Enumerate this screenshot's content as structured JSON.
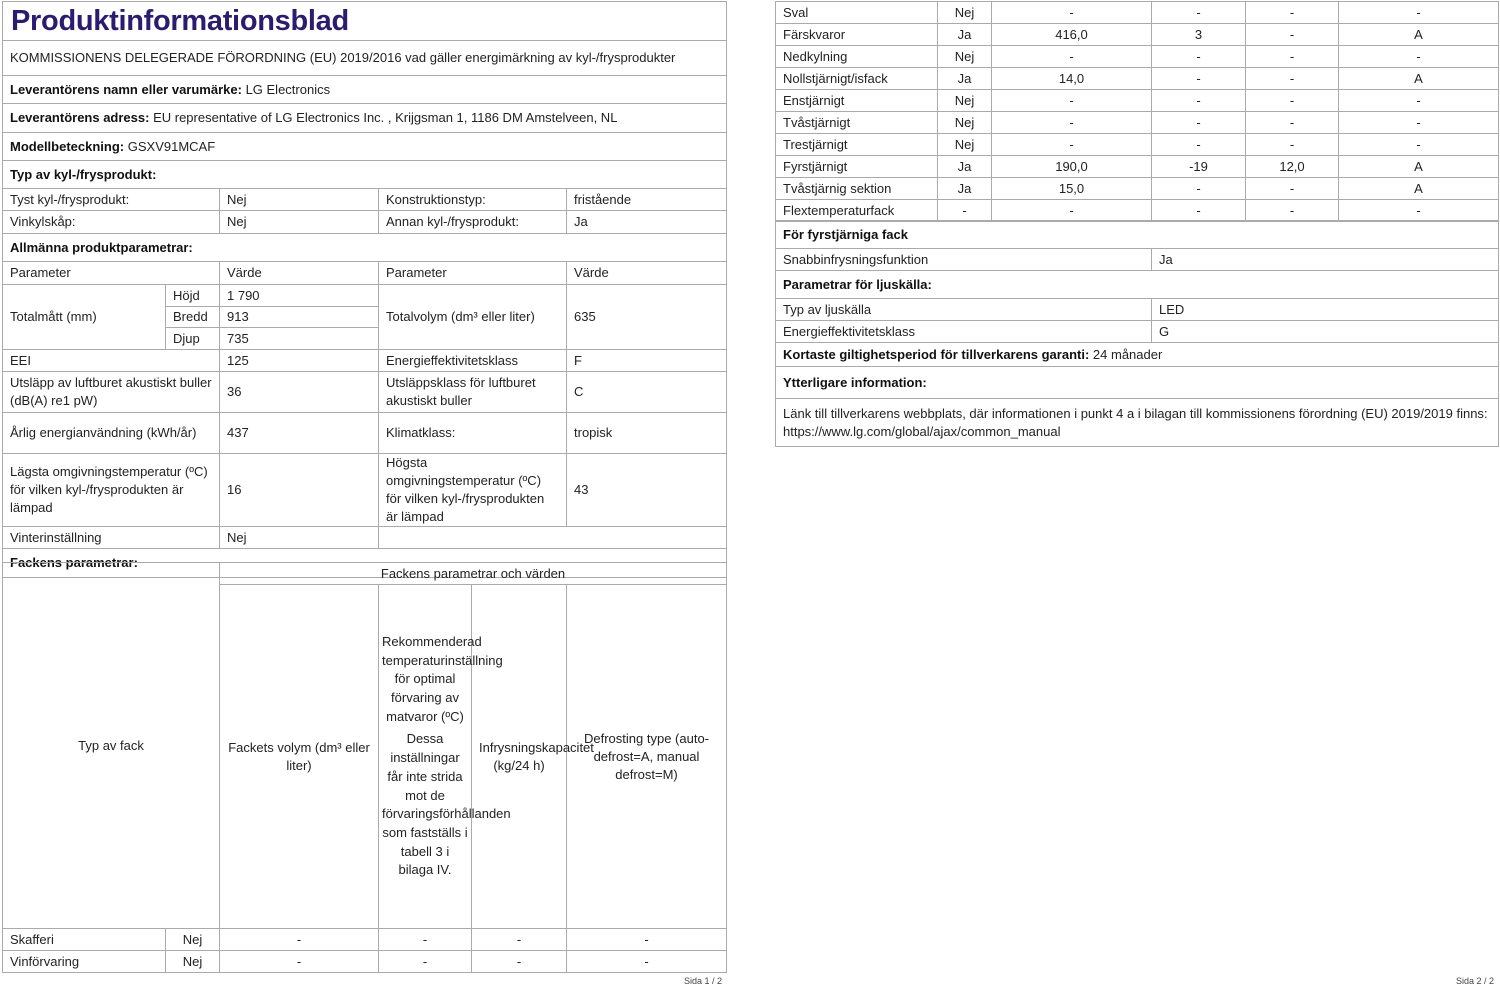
{
  "page1": {
    "title": "Produktinformationsblad",
    "regulation": "KOMMISSIONENS DELEGERADE FÖRORDNING (EU) 2019/2016 vad gäller energimärkning av kyl-/frysprodukter",
    "supplier_label": "Leverantörens namn eller varumärke:",
    "supplier": "LG Electronics",
    "address_label": "Leverantörens adress:",
    "address": "EU representative of LG Electronics Inc. , Krijgsman 1, 1186 DM Amstelveen, NL",
    "model_label": "Modellbeteckning:",
    "model": "GSXV91MCAF",
    "type_heading": "Typ av kyl-/frysprodukt:",
    "type_rows": [
      [
        "Tyst kyl-/frysprodukt:",
        "Nej",
        "Konstruktionstyp:",
        "fristående"
      ],
      [
        "Vinkylskåp:",
        "Nej",
        "Annan kyl-/frysprodukt:",
        "Ja"
      ]
    ],
    "general_heading": "Allmänna produktparametrar:",
    "col_param": "Parameter",
    "col_value": "Värde",
    "dims_label": "Totalmått (mm)",
    "dims": [
      [
        "Höjd",
        "1 790"
      ],
      [
        "Bredd",
        "913"
      ],
      [
        "Djup",
        "735"
      ]
    ],
    "volume_label": "Totalvolym (dm³ eller liter)",
    "volume": "635",
    "eei_label": "EEI",
    "eei": "125",
    "eclass_label": "Energieffektivitetsklass",
    "eclass": "F",
    "noise_label": "Utsläpp av luftburet akustiskt buller (dB(A) re1 pW)",
    "noise": "36",
    "noise_class_label": "Utsläppsklass för luftburet akustiskt buller",
    "noise_class": "C",
    "energy_label": "Årlig energianvändning (kWh/år)",
    "energy": "437",
    "climate_label": "Klimatklass:",
    "climate": "tropisk",
    "min_temp_label": "Lägsta omgivningstemperatur (ºC) för vilken kyl-/frysprodukten är lämpad",
    "min_temp": "16",
    "max_temp_label": "Högsta omgivningstemperatur (ºC) för vilken kyl-/frysprodukten är lämpad",
    "max_temp": "43",
    "winter_label": "Vinterinställning",
    "winter": "Nej",
    "comp_heading": "Fackens parametrar:",
    "comp_group": "Fackens parametrar och värden",
    "comp_type": "Typ av fack",
    "comp_volume": "Fackets volym (dm³ eller liter)",
    "comp_temp": "Rekommenderad temperaturinställning för optimal förvaring av matvaror (ºC)",
    "comp_temp_note": "Dessa inställningar får inte strida mot de förvaringsförhållanden som fastställs i tabell 3 i bilaga IV.",
    "comp_freeze": "Infrysningskapacitet (kg/24 h)",
    "comp_defrost": "Defrosting type (auto-defrost=A, manual defrost=M)",
    "comp_rows": [
      [
        "Skafferi",
        "Nej",
        "-",
        "-",
        "-",
        "-"
      ],
      [
        "Vinförvaring",
        "Nej",
        "-",
        "-",
        "-",
        "-"
      ]
    ],
    "footer": "Sida 1 / 2"
  },
  "page2": {
    "comp_rows": [
      [
        "Sval",
        "Nej",
        "-",
        "-",
        "-",
        "-"
      ],
      [
        "Färskvaror",
        "Ja",
        "416,0",
        "3",
        "-",
        "A"
      ],
      [
        "Nedkylning",
        "Nej",
        "-",
        "-",
        "-",
        "-"
      ],
      [
        "Nollstjärnigt/isfack",
        "Ja",
        "14,0",
        "-",
        "-",
        "A"
      ],
      [
        "Enstjärnigt",
        "Nej",
        "-",
        "-",
        "-",
        "-"
      ],
      [
        "Tvåstjärnigt",
        "Nej",
        "-",
        "-",
        "-",
        "-"
      ],
      [
        "Trestjärnigt",
        "Nej",
        "-",
        "-",
        "-",
        "-"
      ],
      [
        "Fyrstjärnigt",
        "Ja",
        "190,0",
        "-19",
        "12,0",
        "A"
      ],
      [
        "Tvåstjärnig sektion",
        "Ja",
        "15,0",
        "-",
        "-",
        "A"
      ],
      [
        "Flextemperaturfack",
        "-",
        "-",
        "-",
        "-",
        "-"
      ]
    ],
    "four_star_heading": "För fyrstjärniga fack",
    "quick_freeze_label": "Snabbinfrysningsfunktion",
    "quick_freeze": "Ja",
    "light_heading": "Parametrar för ljuskälla:",
    "light_type_label": "Typ av ljuskälla",
    "light_type": "LED",
    "light_class_label": "Energieffektivitetsklass",
    "light_class": "G",
    "warranty_label": "Kortaste giltighetsperiod för tillverkarens garanti:",
    "warranty": "24 månader",
    "extra_heading": "Ytterligare information:",
    "extra_text": "Länk till tillverkarens webbplats, där informationen i punkt 4 a i bilagan till kommissionens förordning (EU) 2019/2019 finns:  https://www.lg.com/global/ajax/common_manual",
    "footer": "Sida 2 / 2"
  },
  "colors": {
    "title": "#2b1c70",
    "border": "#aaaaaa"
  }
}
